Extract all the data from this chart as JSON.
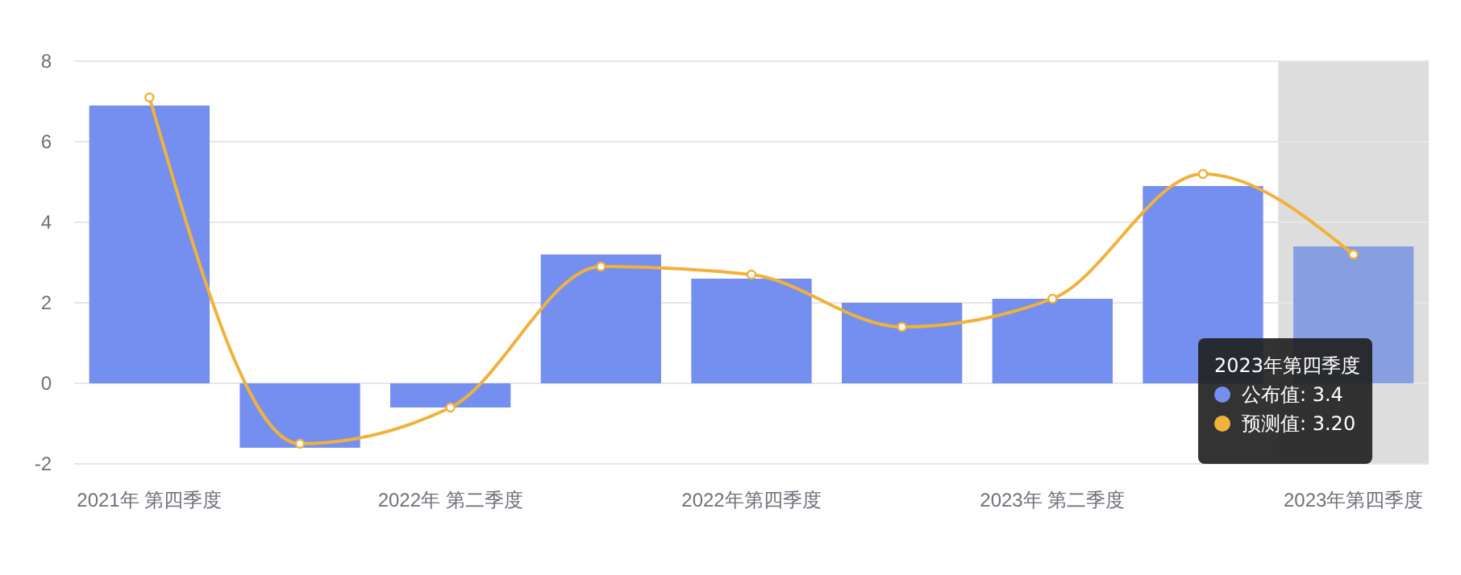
{
  "chart_data": {
    "type": "bar",
    "categories": [
      "2021年 第四季度",
      null,
      "2022年 第二季度",
      null,
      "2022年第四季度",
      null,
      "2023年 第二季度",
      null,
      "2023年第四季度"
    ],
    "series": [
      {
        "color": "#758ff0",
        "colors": [
          "#758ff0",
          "#758ff0",
          "#758ff0",
          "#758ff0",
          "#758ff0",
          "#758ff0",
          "#758ff0",
          "#758ff0",
          "#879ee0"
        ],
        "values": [
          6.9,
          -1.6,
          -0.6,
          3.2,
          2.6,
          2.0,
          2.1,
          4.9,
          3.4
        ]
      },
      {
        "type": "line",
        "color": "#f0b23a",
        "values": [
          7.1,
          -1.5,
          -0.6,
          2.9,
          2.7,
          1.4,
          2.1,
          5.2,
          3.2
        ]
      }
    ],
    "ylim": [
      -2,
      8
    ],
    "yticks": [
      -2,
      0,
      2,
      4,
      6,
      8
    ],
    "grid": "y",
    "marker": "circle",
    "bands": [
      {
        "axis": "x",
        "from": "2023年第四季度",
        "to": "2023年第四季度",
        "color": "#dddddd"
      }
    ],
    "annotations": [
      "2023年第四季度",
      "公布值: 3.4",
      "预测值: 3.20"
    ]
  }
}
